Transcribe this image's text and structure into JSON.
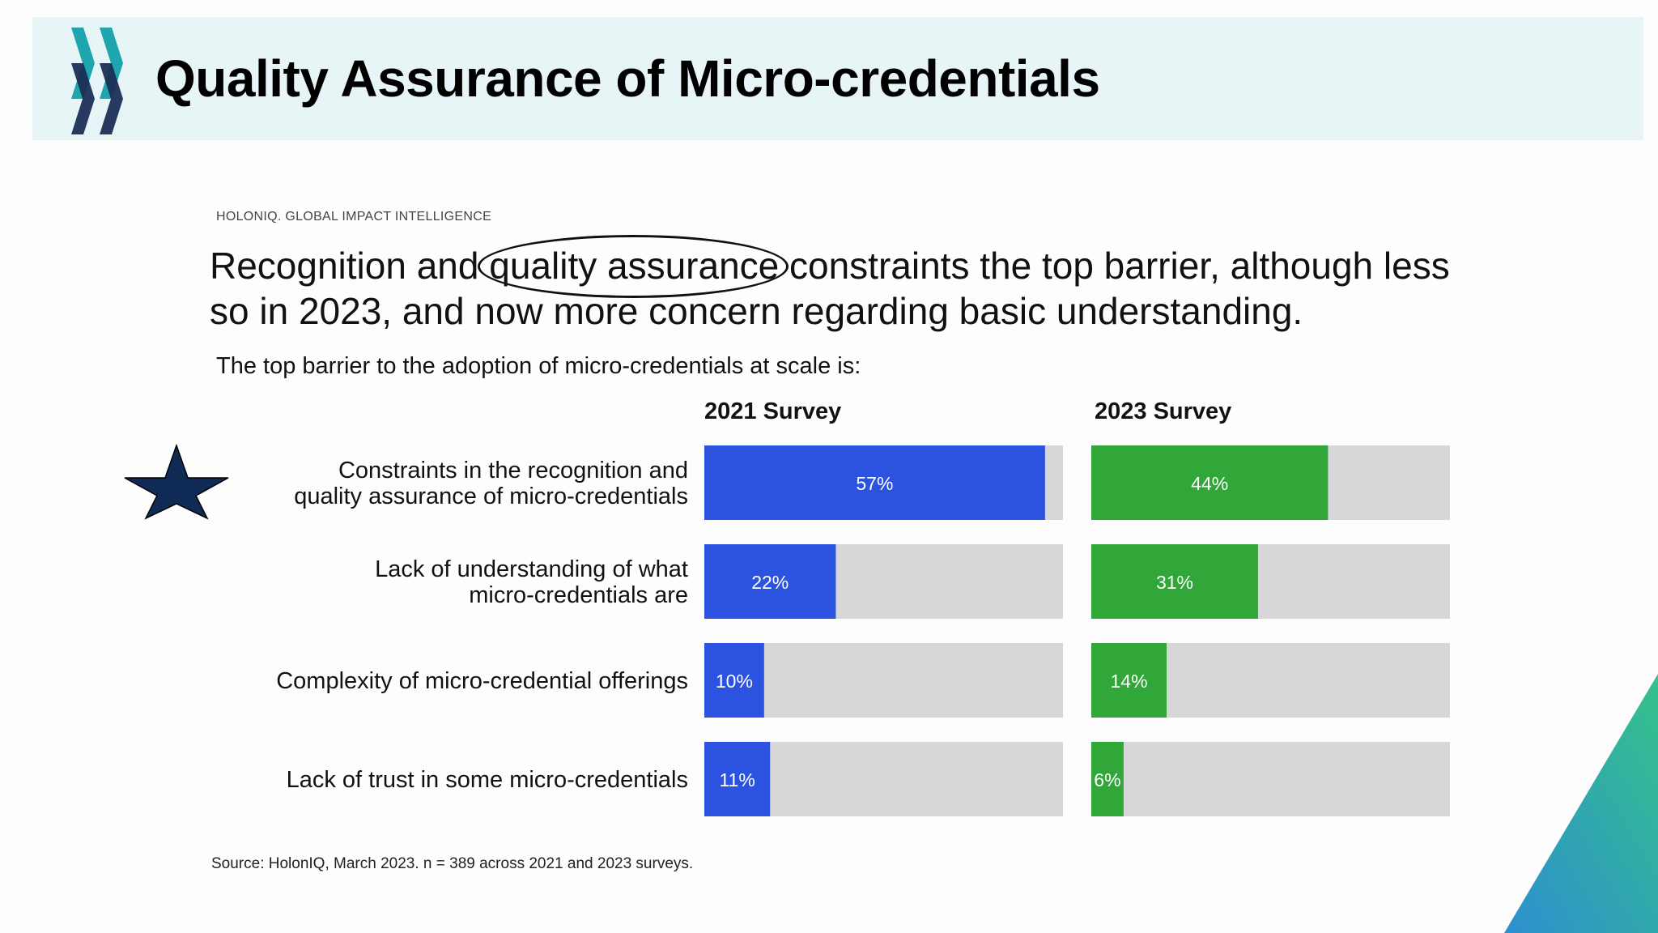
{
  "slide": {
    "title": "Quality Assurance of Micro-credentials"
  },
  "brand": "HOLONIQ. GLOBAL IMPACT INTELLIGENCE",
  "headline": {
    "before": "Recognition and ",
    "circled": "quality assurance",
    "after": " constraints the top barrier, although less so in 2023, and now more concern regarding basic understanding."
  },
  "source": "Source: HolonIQ, March 2023. n = 389 across 2021 and 2023 surveys.",
  "colors": {
    "series_2021": "#2c53e0",
    "series_2023": "#31a639",
    "track": "#d7d7d9",
    "star": "#0f2b55"
  },
  "icons": {
    "highlight": "star-icon",
    "logo": "chevron-logo-icon"
  },
  "chart_data": {
    "type": "bar",
    "title": "The top barrier to the adoption of micro-credentials at scale is:",
    "categories": [
      [
        "Constraints in the recognition and",
        "quality assurance of micro-credentials"
      ],
      [
        "Lack of understanding of what",
        "micro-credentials are"
      ],
      [
        "Complexity of micro-credential offerings"
      ],
      [
        "Lack of trust in some micro-credentials"
      ]
    ],
    "series": [
      {
        "name": "2021 Survey",
        "values": [
          57,
          22,
          10,
          11
        ],
        "labels": [
          "57%",
          "22%",
          "10%",
          "11%"
        ]
      },
      {
        "name": "2023 Survey",
        "values": [
          44,
          31,
          14,
          6
        ],
        "labels": [
          "44%",
          "31%",
          "14%",
          "6%"
        ]
      }
    ],
    "xlim": [
      0,
      60
    ],
    "orientation": "horizontal",
    "grid": false,
    "highlighted_category": 0
  }
}
